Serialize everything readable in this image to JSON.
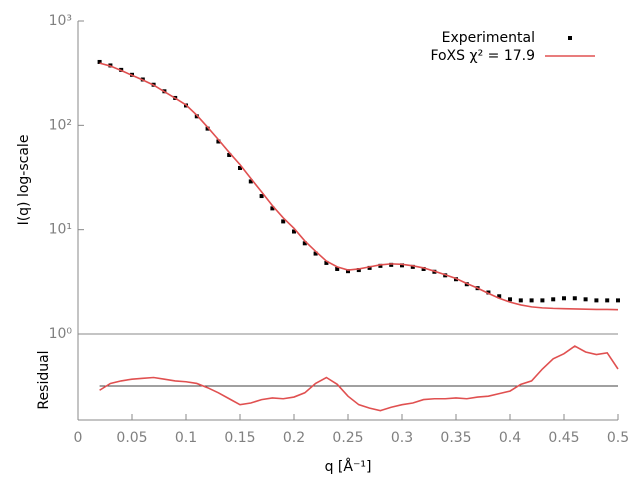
{
  "chart_data": [
    {
      "type": "line",
      "y_label": "I(q) log-scale",
      "log_scale": true,
      "x": [
        0.02,
        0.03,
        0.04,
        0.05,
        0.06,
        0.07,
        0.08,
        0.09,
        0.1,
        0.11,
        0.12,
        0.13,
        0.14,
        0.15,
        0.16,
        0.17,
        0.18,
        0.19,
        0.2,
        0.21,
        0.22,
        0.23,
        0.24,
        0.25,
        0.26,
        0.27,
        0.28,
        0.29,
        0.3,
        0.31,
        0.32,
        0.33,
        0.34,
        0.35,
        0.36,
        0.37,
        0.38,
        0.39,
        0.4,
        0.41,
        0.42,
        0.43,
        0.44,
        0.45,
        0.46,
        0.47,
        0.48,
        0.49,
        0.5
      ],
      "series": [
        {
          "name": "Experimental",
          "color": "#000000",
          "mode": "points",
          "values": [
            405,
            375,
            340,
            305,
            275,
            245,
            212,
            183,
            155,
            122,
            93,
            70,
            52,
            39,
            29,
            21,
            16,
            12,
            9.6,
            7.4,
            5.9,
            4.8,
            4.2,
            4.0,
            4.1,
            4.3,
            4.5,
            4.6,
            4.55,
            4.4,
            4.2,
            3.95,
            3.65,
            3.35,
            3.0,
            2.75,
            2.5,
            2.3,
            2.15,
            2.1,
            2.1,
            2.1,
            2.15,
            2.2,
            2.2,
            2.15,
            2.1,
            2.1,
            2.1
          ]
        },
        {
          "name": "FoXS χ² = 17.9",
          "color": "#e05050",
          "mode": "line",
          "values": [
            395,
            370,
            335,
            302,
            272,
            243,
            210,
            182,
            157,
            125,
            96,
            73,
            55,
            42,
            31,
            23,
            17,
            13,
            10.3,
            7.8,
            6.2,
            5.0,
            4.4,
            4.1,
            4.2,
            4.4,
            4.6,
            4.7,
            4.65,
            4.5,
            4.3,
            4.0,
            3.7,
            3.4,
            3.05,
            2.75,
            2.45,
            2.2,
            2.02,
            1.9,
            1.82,
            1.78,
            1.76,
            1.75,
            1.74,
            1.73,
            1.72,
            1.72,
            1.71
          ]
        }
      ],
      "xlim": [
        0,
        0.5
      ],
      "ylim": [
        1,
        1000
      ],
      "yticks": [
        {
          "value": 1,
          "label": "10⁰"
        },
        {
          "value": 10,
          "label": "10¹"
        },
        {
          "value": 100,
          "label": "10²"
        },
        {
          "value": 1000,
          "label": "10³"
        }
      ],
      "legend": "top-right"
    },
    {
      "type": "line",
      "y_label": "Residual",
      "x_label": "q [Å⁻¹]",
      "x": [
        0.02,
        0.03,
        0.04,
        0.05,
        0.06,
        0.07,
        0.08,
        0.09,
        0.1,
        0.11,
        0.12,
        0.13,
        0.14,
        0.15,
        0.16,
        0.17,
        0.18,
        0.19,
        0.2,
        0.21,
        0.22,
        0.23,
        0.24,
        0.25,
        0.26,
        0.27,
        0.28,
        0.29,
        0.3,
        0.31,
        0.32,
        0.33,
        0.34,
        0.35,
        0.36,
        0.37,
        0.38,
        0.39,
        0.4,
        0.41,
        0.42,
        0.43,
        0.44,
        0.45,
        0.46,
        0.47,
        0.48,
        0.49,
        0.5
      ],
      "series": [
        {
          "color": "#e05050",
          "mode": "line",
          "values": [
            -0.5,
            0.3,
            0.6,
            0.8,
            0.9,
            1.0,
            0.8,
            0.6,
            0.5,
            0.3,
            -0.2,
            -0.8,
            -1.5,
            -2.2,
            -2.0,
            -1.6,
            -1.4,
            -1.5,
            -1.3,
            -0.8,
            0.3,
            1.0,
            0.2,
            -1.2,
            -2.2,
            -2.6,
            -2.9,
            -2.5,
            -2.2,
            -2.0,
            -1.6,
            -1.5,
            -1.5,
            -1.4,
            -1.5,
            -1.3,
            -1.2,
            -0.9,
            -0.6,
            0.2,
            0.6,
            2.0,
            3.2,
            3.8,
            4.7,
            4.0,
            3.7,
            3.9,
            2.0
          ]
        }
      ],
      "xlim": [
        0,
        0.5
      ],
      "ylim": [
        -4,
        6
      ],
      "xticks": [
        0,
        0.05,
        0.1,
        0.15,
        0.2,
        0.25,
        0.3,
        0.35,
        0.4,
        0.45,
        0.5
      ]
    }
  ]
}
